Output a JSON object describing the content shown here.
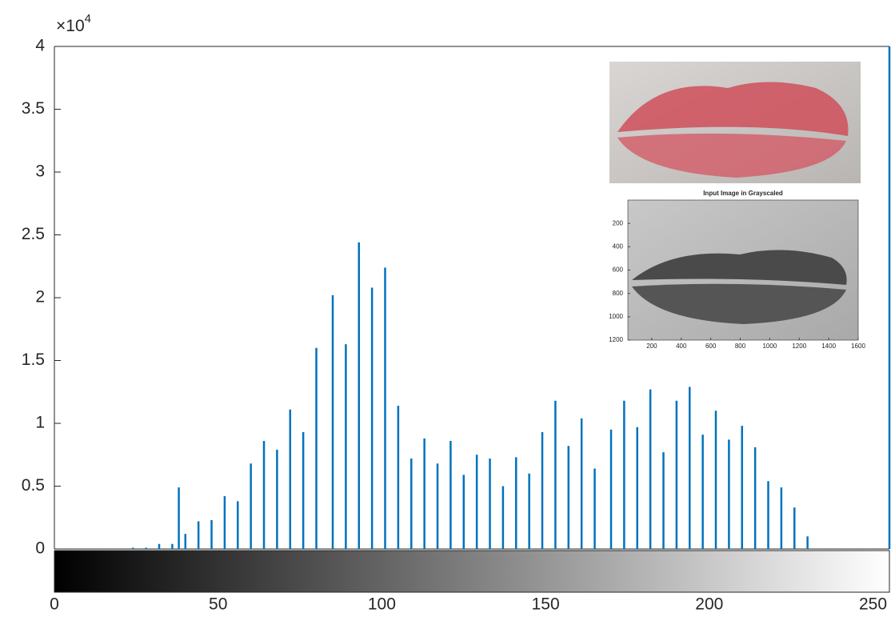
{
  "chart_data": {
    "type": "stem",
    "y_multiplier": {
      "base": "×10",
      "power": "4"
    },
    "x": [
      24,
      28,
      32,
      36,
      38,
      40,
      44,
      48,
      52,
      56,
      60,
      64,
      68,
      72,
      76,
      80,
      85,
      89,
      93,
      97,
      101,
      105,
      109,
      113,
      117,
      121,
      125,
      129,
      133,
      137,
      141,
      145,
      149,
      153,
      157,
      161,
      165,
      170,
      174,
      178,
      182,
      186,
      190,
      194,
      198,
      202,
      206,
      210,
      214,
      218,
      222,
      226,
      230,
      255
    ],
    "values": [
      0.01,
      0.01,
      0.04,
      0.04,
      0.49,
      0.12,
      0.22,
      0.23,
      0.42,
      0.38,
      0.68,
      0.86,
      0.79,
      1.11,
      0.93,
      1.6,
      2.02,
      1.63,
      2.44,
      2.08,
      2.24,
      1.14,
      0.72,
      0.88,
      0.68,
      0.86,
      0.59,
      0.75,
      0.72,
      0.5,
      0.73,
      0.6,
      0.93,
      1.18,
      0.82,
      1.04,
      0.64,
      0.95,
      1.18,
      0.97,
      1.27,
      0.77,
      1.18,
      1.29,
      0.91,
      1.1,
      0.87,
      0.98,
      0.81,
      0.54,
      0.49,
      0.33,
      0.1,
      4
    ],
    "color": "#0072bd",
    "xlim": [
      0,
      255
    ],
    "xticks": [
      0,
      50,
      100,
      150,
      200,
      250
    ],
    "ylim": [
      0,
      4
    ],
    "yticks": [
      0,
      0.5,
      1,
      1.5,
      2,
      2.5,
      3,
      3.5,
      4
    ]
  },
  "inset_image": {
    "title": "Input Image in Grayscaled",
    "xlim": [
      0,
      1600
    ],
    "xticks": [
      200,
      400,
      600,
      800,
      1000,
      1200,
      1400,
      1600
    ],
    "ylim": [
      0,
      1200
    ],
    "yticks": [
      200,
      400,
      600,
      800,
      1000,
      1200
    ]
  }
}
